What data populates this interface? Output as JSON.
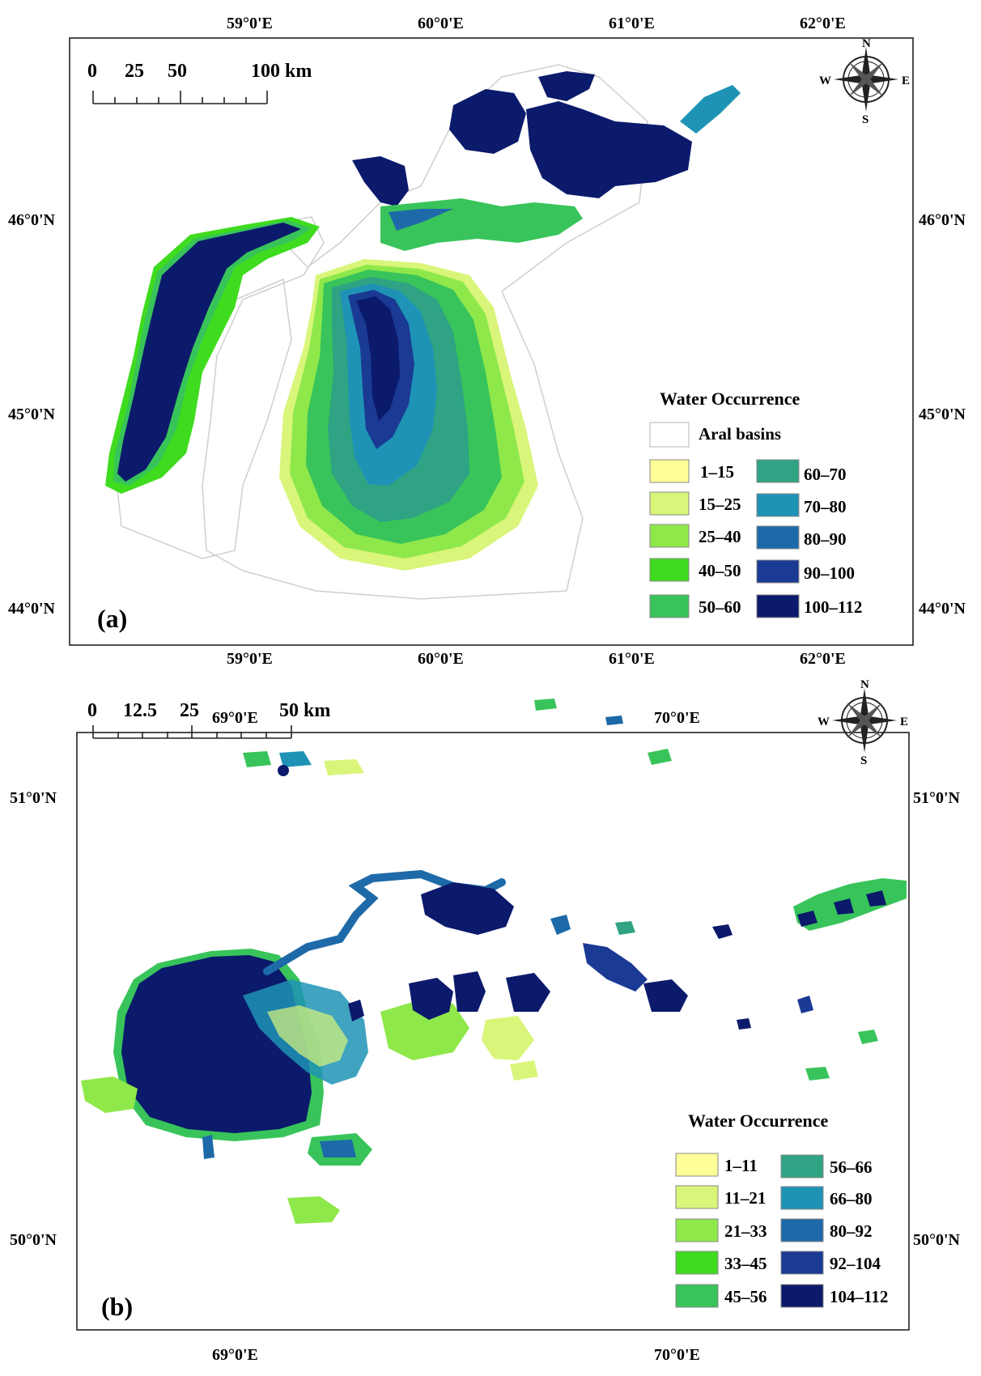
{
  "panel_a": {
    "label": "(a)",
    "top_lon_ticks": [
      "59°0'E",
      "60°0'E",
      "61°0'E",
      "62°0'E"
    ],
    "bottom_lon_ticks": [
      "59°0'E",
      "60°0'E",
      "61°0'E",
      "62°0'E"
    ],
    "left_lat_ticks": [
      "46°0'N",
      "45°0'N",
      "44°0'N"
    ],
    "right_lat_ticks": [
      "46°0'N",
      "45°0'N",
      "44°0'N"
    ],
    "scale_labels": [
      "0",
      "25",
      "50",
      "100 km"
    ],
    "compass": {
      "n": "N",
      "s": "S",
      "e": "E",
      "w": "W"
    },
    "legend": {
      "title": "Water Occurrence",
      "basin_label": "Aral basins",
      "classes_left": [
        "1–15",
        "15–25",
        "25–40",
        "40–50",
        "50–60"
      ],
      "classes_right": [
        "60–70",
        "70–80",
        "80–90",
        "90–100",
        "100–112"
      ]
    }
  },
  "panel_b": {
    "label": "(b)",
    "top_lon_ticks": [
      "69°0'E",
      "70°0'E"
    ],
    "bottom_lon_ticks": [
      "69°0'E",
      "70°0'E"
    ],
    "left_lat_ticks": [
      "51°0'N",
      "50°0'N"
    ],
    "right_lat_ticks": [
      "51°0'N",
      "50°0'N"
    ],
    "scale_labels": [
      "0",
      "12.5",
      "25",
      "50 km"
    ],
    "compass": {
      "n": "N",
      "s": "S",
      "e": "E",
      "w": "W"
    },
    "legend": {
      "title": "Water Occurrence",
      "classes_left": [
        "1–11",
        "11–21",
        "21–33",
        "33–45",
        "45–56"
      ],
      "classes_right": [
        "56–66",
        "66–80",
        "80–92",
        "92–104",
        "104–112"
      ]
    }
  },
  "colors": {
    "class_left": [
      "#ffff99",
      "#d9f57a",
      "#8fe84a",
      "#3fdb1e",
      "#38c45a"
    ],
    "class_right": [
      "#2fa383",
      "#1f93b5",
      "#1e6aa8",
      "#1a3a94",
      "#0b1a6b"
    ]
  }
}
